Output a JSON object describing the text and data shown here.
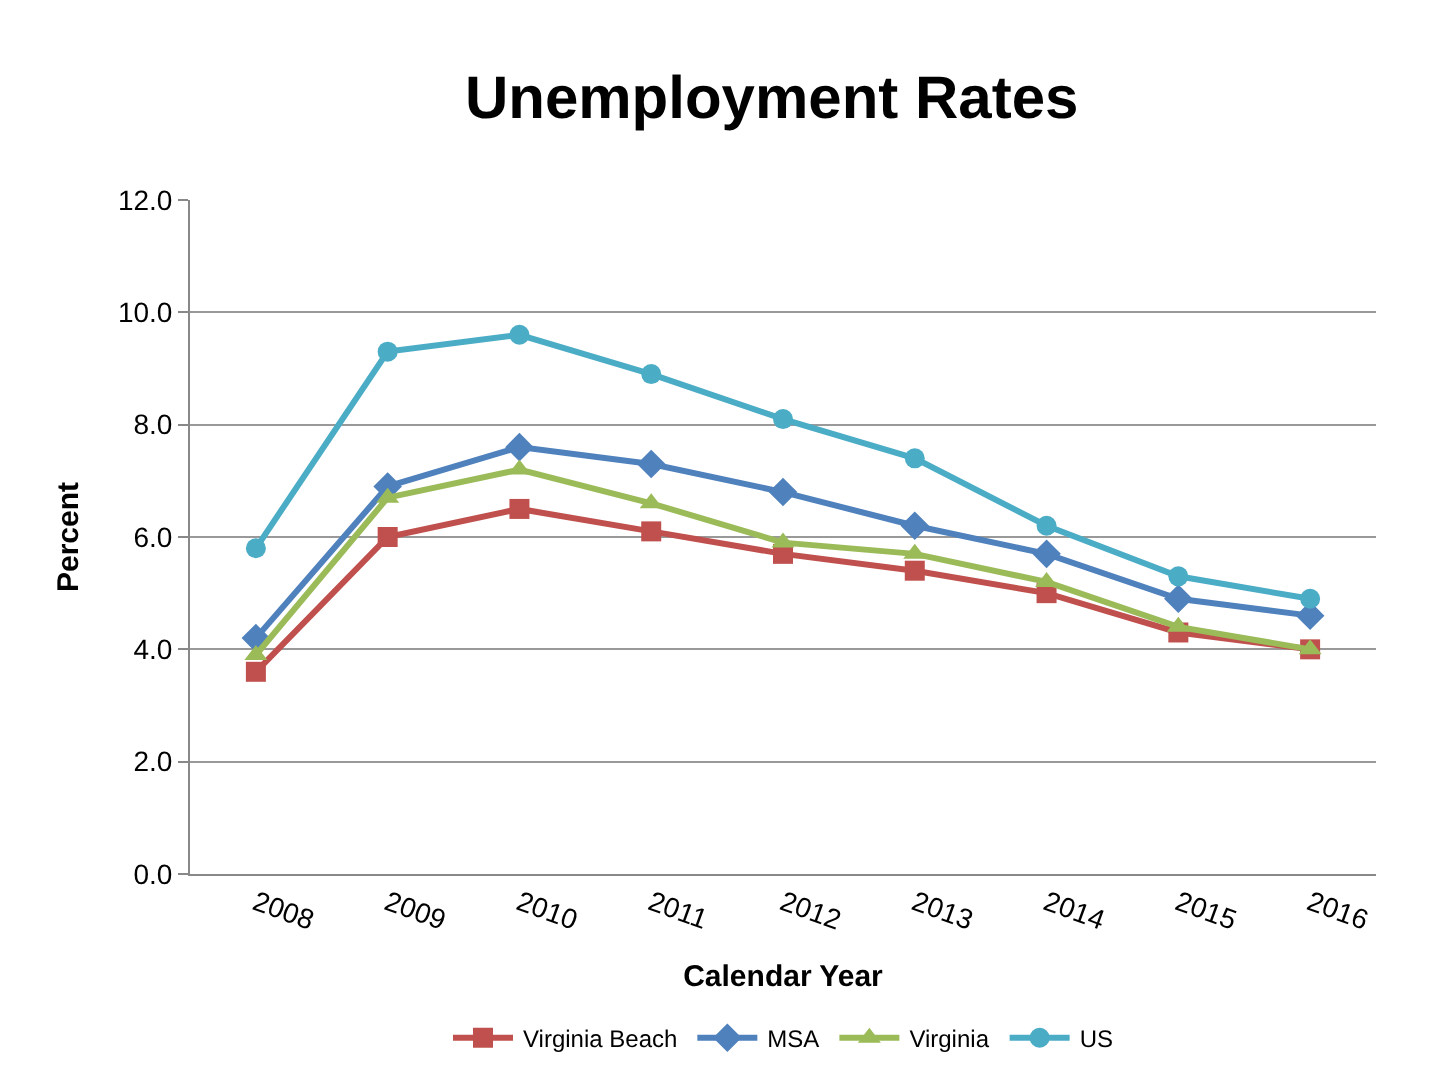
{
  "chart_data": {
    "type": "line",
    "title": "Unemployment Rates",
    "xlabel": "Calendar Year",
    "ylabel": "Percent",
    "categories": [
      "2008",
      "2009",
      "2010",
      "2011",
      "2012",
      "2013",
      "2014",
      "2015",
      "2016"
    ],
    "series": [
      {
        "name": "Virginia Beach",
        "color": "#c0504d",
        "marker": "square",
        "values": [
          3.6,
          6.0,
          6.5,
          6.1,
          5.7,
          5.4,
          5.0,
          4.3,
          4.0
        ]
      },
      {
        "name": "MSA",
        "color": "#4f81bd",
        "marker": "diamond",
        "values": [
          4.2,
          6.9,
          7.6,
          7.3,
          6.8,
          6.2,
          5.7,
          4.9,
          4.6
        ]
      },
      {
        "name": "Virginia",
        "color": "#9bbb59",
        "marker": "triangle",
        "values": [
          3.9,
          6.7,
          7.2,
          6.6,
          5.9,
          5.7,
          5.2,
          4.4,
          4.0
        ]
      },
      {
        "name": "US",
        "color": "#4bacc6",
        "marker": "circle",
        "values": [
          5.8,
          9.3,
          9.6,
          8.9,
          8.1,
          7.4,
          6.2,
          5.3,
          4.9
        ]
      }
    ],
    "ylim": [
      0,
      12
    ],
    "yticks": [
      {
        "value": 0,
        "label": "0.0"
      },
      {
        "value": 2,
        "label": "2.0"
      },
      {
        "value": 4,
        "label": "4.0"
      },
      {
        "value": 6,
        "label": "6.0"
      },
      {
        "value": 8,
        "label": "8.0"
      },
      {
        "value": 10,
        "label": "10.0"
      },
      {
        "value": 12,
        "label": "12.0"
      }
    ],
    "grid": "y",
    "legend": "bottom",
    "line_style": "solid"
  }
}
